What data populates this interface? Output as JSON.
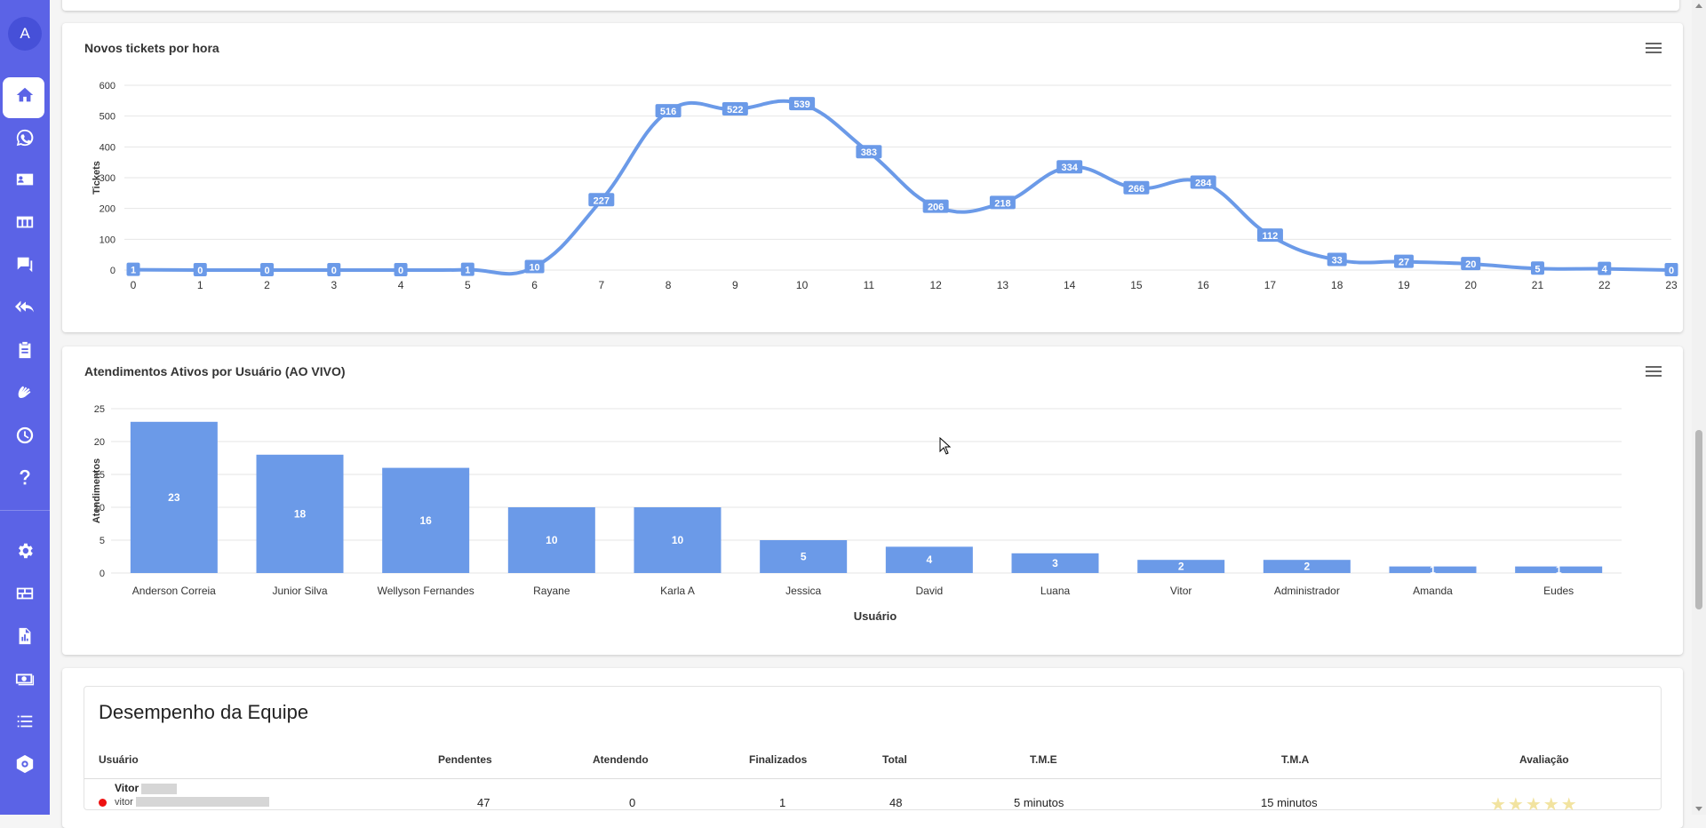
{
  "sidebar": {
    "avatar_letter": "A",
    "items": [
      {
        "icon": "home-icon",
        "active": true
      },
      {
        "icon": "whatsapp-icon"
      },
      {
        "icon": "contact-card-icon"
      },
      {
        "icon": "kanban-icon"
      },
      {
        "icon": "chat-icon"
      },
      {
        "icon": "quick-reply-icon"
      },
      {
        "icon": "clipboard-icon"
      },
      {
        "icon": "hands-icon"
      },
      {
        "icon": "clock-icon"
      },
      {
        "icon": "help-icon"
      },
      {
        "icon": "gear-icon"
      },
      {
        "icon": "dashboard-icon"
      },
      {
        "icon": "report-icon"
      },
      {
        "icon": "money-icon"
      },
      {
        "icon": "list-icon"
      },
      {
        "icon": "settings-icon"
      }
    ]
  },
  "colors": {
    "accent": "#5b63e6",
    "series": "#6b9ae8"
  },
  "chart_data": [
    {
      "type": "line",
      "title": "Novos tickets por hora",
      "xlabel": "",
      "ylabel": "Tickets",
      "x": [
        "0",
        "1",
        "2",
        "3",
        "4",
        "5",
        "6",
        "7",
        "8",
        "9",
        "10",
        "11",
        "12",
        "13",
        "14",
        "15",
        "16",
        "17",
        "18",
        "19",
        "20",
        "21",
        "22",
        "23"
      ],
      "values": [
        1,
        0,
        0,
        0,
        0,
        1,
        10,
        227,
        516,
        522,
        539,
        383,
        206,
        218,
        334,
        266,
        284,
        112,
        33,
        27,
        20,
        5,
        4,
        0
      ],
      "ylim": [
        0,
        600
      ],
      "yticks": [
        "0",
        "100",
        "200",
        "300",
        "400",
        "500",
        "600"
      ],
      "grid": true,
      "data_labels": true
    },
    {
      "type": "bar",
      "title": "Atendimentos Ativos por Usuário (AO VIVO)",
      "xlabel": "Usuário",
      "ylabel": "Atendimentos",
      "categories": [
        "Anderson Correia",
        "Junior Silva",
        "Wellyson Fernandes",
        "Rayane",
        "Karla A",
        "Jessica",
        "David",
        "Luana",
        "Vitor",
        "Administrador",
        "Amanda",
        "Eudes"
      ],
      "values": [
        23,
        18,
        16,
        10,
        10,
        5,
        4,
        3,
        2,
        2,
        1,
        1
      ],
      "ylim": [
        0,
        25
      ],
      "yticks": [
        "0",
        "5",
        "10",
        "15",
        "20",
        "25"
      ],
      "grid": true,
      "data_labels": true
    }
  ],
  "team": {
    "title": "Desempenho da Equipe",
    "headers": {
      "user": "Usuário",
      "pending": "Pendentes",
      "attending": "Atendendo",
      "finished": "Finalizados",
      "total": "Total",
      "tme": "T.M.E",
      "tma": "T.M.A",
      "rating": "Avaliação"
    },
    "rows": [
      {
        "name": "Vitor",
        "email": "vitor",
        "pending": "47",
        "attending": "0",
        "finished": "1",
        "total": "48",
        "tme": "5 minutos",
        "tma": "15 minutos",
        "rating": "★★★★★",
        "status_color": "#e11"
      }
    ]
  }
}
